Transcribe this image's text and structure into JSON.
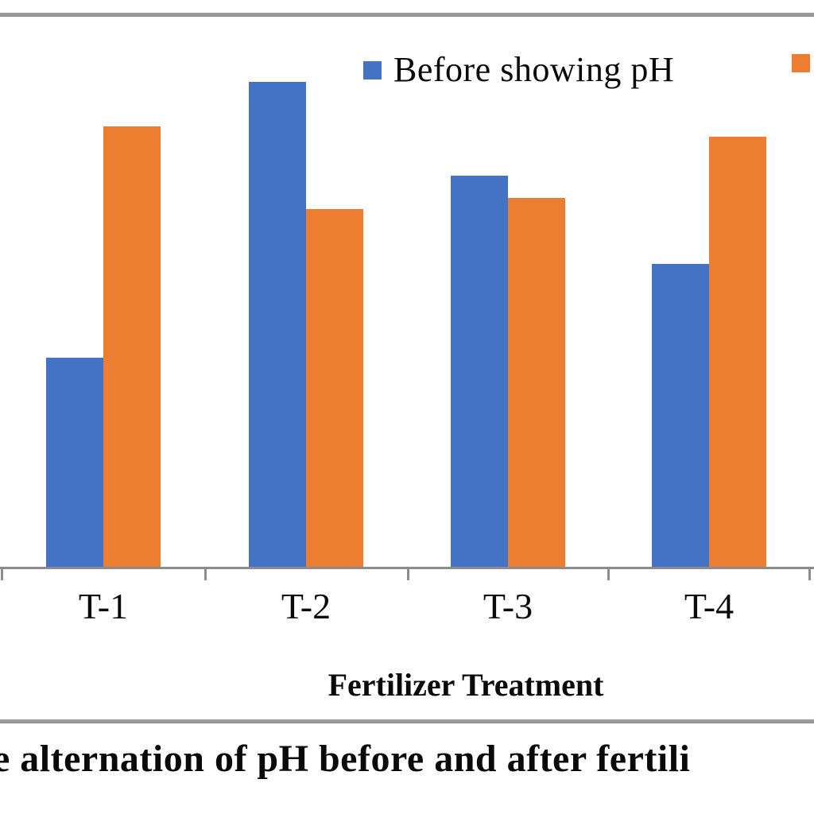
{
  "figure": {
    "caption": "e alternation of pH before and after fertili"
  },
  "legend": {
    "entries": [
      {
        "label": "Before showing pH",
        "color": "#4472C4"
      },
      {
        "label": "",
        "color": "#ED7D31"
      }
    ]
  },
  "chart_data": {
    "type": "bar",
    "title": "",
    "categories": [
      "T-1",
      "T-2",
      "T-3",
      "T-4"
    ],
    "series": [
      {
        "name": "Before showing pH",
        "color": "#4472C4",
        "values_rel_height": [
          0.38,
          0.88,
          0.71,
          0.55
        ]
      },
      {
        "name": "",
        "color": "#ED7D31",
        "values_rel_height": [
          0.8,
          0.65,
          0.67,
          0.78
        ]
      }
    ],
    "xlabel": "Fertilizer Treatment",
    "ylabel": "",
    "legend_position": "top",
    "grid": false,
    "axis_color": "#8C8C8C",
    "text_color": "#0A0A0A",
    "note": "Y-axis with tick values and the second legend label are cropped outside the visible image; series values are bar heights as a fraction of the visible plot height."
  }
}
